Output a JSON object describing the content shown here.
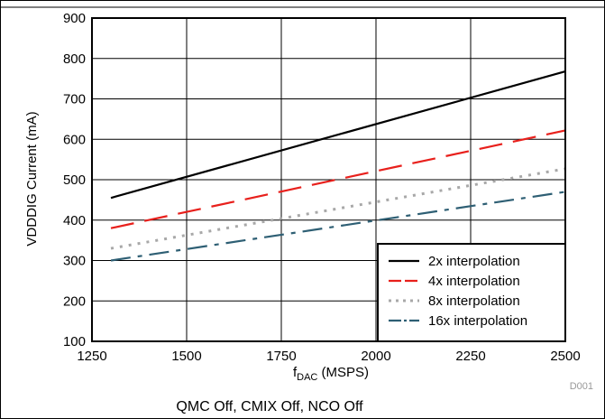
{
  "chart_data": {
    "type": "line",
    "xlabel_main": "f",
    "xlabel_sub": "DAC",
    "xlabel_rest": " (MSPS)",
    "ylabel": "VDDDIG Current (mA)",
    "caption": "QMC Off, CMIX Off, NCO Off",
    "figure_id": "D001",
    "xlim": [
      1250,
      2500
    ],
    "ylim": [
      100,
      900
    ],
    "x_ticks": [
      "1250",
      "1500",
      "1750",
      "2000",
      "2250",
      "2500"
    ],
    "y_ticks": [
      "100",
      "200",
      "300",
      "400",
      "500",
      "600",
      "700",
      "800",
      "900"
    ],
    "grid": true,
    "legend_position": "bottom-right",
    "series": [
      {
        "name": "2x interpolation",
        "color": "#000000",
        "style": "solid",
        "x": [
          1300,
          2500
        ],
        "y": [
          455,
          768
        ]
      },
      {
        "name": "4x interpolation",
        "color": "#e8201c",
        "style": "long-dash",
        "x": [
          1300,
          2500
        ],
        "y": [
          380,
          622
        ]
      },
      {
        "name": "8x interpolation",
        "color": "#a8a8a8",
        "style": "dot",
        "x": [
          1300,
          2500
        ],
        "y": [
          330,
          527
        ]
      },
      {
        "name": "16x interpolation",
        "color": "#2e5f74",
        "style": "dash-dot",
        "x": [
          1300,
          2500
        ],
        "y": [
          300,
          470
        ]
      }
    ]
  }
}
